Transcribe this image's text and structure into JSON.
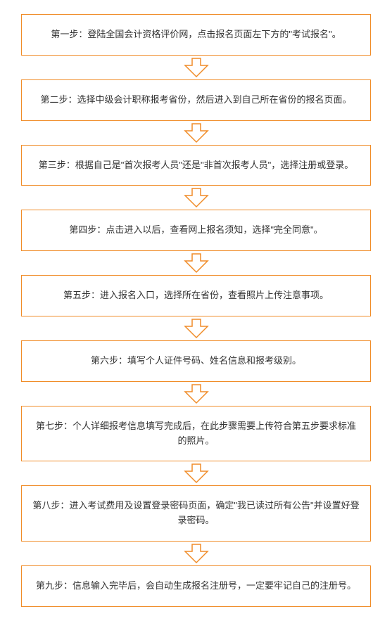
{
  "border_color": "#f08c28",
  "arrow_stroke": "#f08c28",
  "arrow_fill": "#ffffff",
  "text_color": "#333333",
  "font_size": 13,
  "steps": [
    {
      "text": "第一步：登陆全国会计资格评价网，点击报名页面左下方的\"考试报名\"。"
    },
    {
      "text": "第二步：选择中级会计职称报考省份，然后进入到自己所在省份的报名页面。"
    },
    {
      "text": "第三步：根据自己是\"首次报考人员\"还是\"非首次报考人员\"，选择注册或登录。"
    },
    {
      "text": "第四步：点击进入以后，查看网上报名须知，选择\"完全同意\"。"
    },
    {
      "text": "第五步：进入报名入口，选择所在省份，查看照片上传注意事项。"
    },
    {
      "text": "第六步：填写个人证件号码、姓名信息和报考级别。"
    },
    {
      "text": "第七步：个人详细报考信息填写完成后，在此步骤需要上传符合第五步要求标准的照片。"
    },
    {
      "text": "第八步：进入考试费用及设置登录密码页面，确定\"我已读过所有公告\"并设置好登录密码。"
    },
    {
      "text": "第九步：信息输入完毕后，会自动生成报名注册号，一定要牢记自己的注册号。"
    }
  ]
}
